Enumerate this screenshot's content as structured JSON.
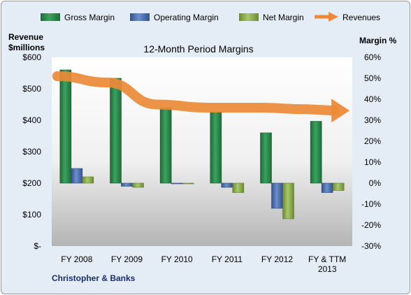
{
  "chart_data": {
    "type": "bar",
    "title": "12-Month Period Margins",
    "company": "Christopher & Banks",
    "categories": [
      "FY 2008",
      "FY 2009",
      "FY 2010",
      "FY 2011",
      "FY 2012",
      "FY & TTM 2013"
    ],
    "y_left": {
      "label_line1": "Revenue",
      "label_line2": "$millions",
      "ticks": [
        "$600",
        "$500",
        "$400",
        "$300",
        "$200",
        "$100",
        "$-"
      ],
      "range": [
        0,
        600
      ]
    },
    "y_right": {
      "label": "Margin %",
      "ticks": [
        "60%",
        "50%",
        "40%",
        "30%",
        "20%",
        "10%",
        "0%",
        "-10%",
        "-20%",
        "-30%"
      ],
      "range": [
        -30,
        60
      ]
    },
    "series": [
      {
        "name": "Gross Margin",
        "axis": "right",
        "values": [
          54,
          50,
          36,
          34,
          24,
          29.5
        ]
      },
      {
        "name": "Operating Margin",
        "axis": "right",
        "values": [
          7,
          -1.5,
          -0.3,
          -2,
          -12,
          -4.5
        ]
      },
      {
        "name": "Net Margin",
        "axis": "right",
        "values": [
          3,
          -2,
          -0.3,
          -4.5,
          -17,
          -3.5
        ]
      },
      {
        "name": "Revenues",
        "axis": "left",
        "type": "line",
        "values": [
          540,
          520,
          450,
          440,
          440,
          435
        ]
      }
    ],
    "colors": {
      "gross": "#2e8a4e",
      "operating": "#4a6fb0",
      "net": "#8fb04e",
      "revenue": "#ec8a38"
    },
    "legend_position": "top",
    "grid": false
  }
}
